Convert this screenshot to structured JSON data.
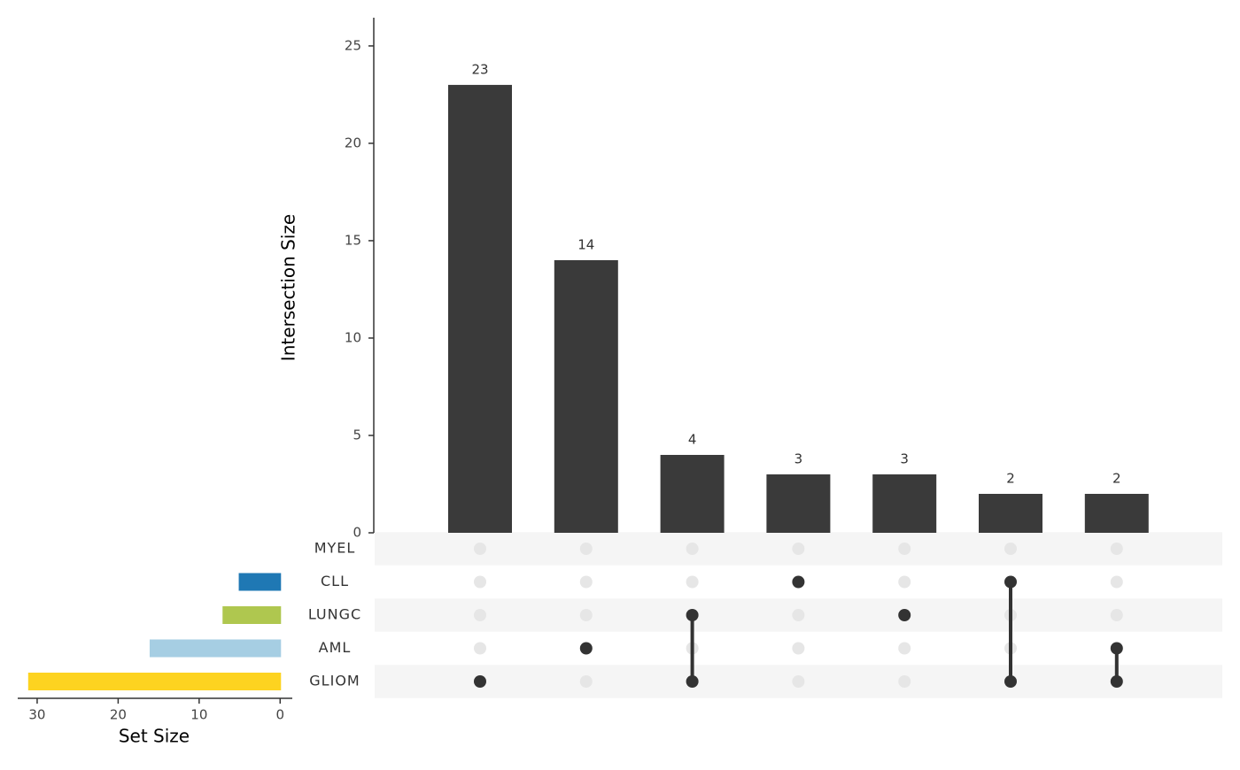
{
  "chart_data": {
    "type": "upset",
    "y_label": "Intersection Size",
    "set_size_label": "Set Size",
    "values": [
      23,
      14,
      4,
      3,
      3,
      2,
      2
    ],
    "bar_color": "#3a3a3a",
    "ylim": [
      0,
      26.45
    ],
    "yticks": [
      0,
      5,
      10,
      15,
      20,
      25
    ],
    "sets": [
      {
        "name": "MYEL",
        "size": 0,
        "color": "#66c2a5"
      },
      {
        "name": "CLL",
        "size": 5,
        "color": "#1f78b4"
      },
      {
        "name": "LUNGC",
        "size": 7,
        "color": "#afc74f"
      },
      {
        "name": "AML",
        "size": 16,
        "color": "#a6cee3"
      },
      {
        "name": "GLIOM",
        "size": 31,
        "color": "#fdd320"
      }
    ],
    "membership": [
      [
        4
      ],
      [
        3
      ],
      [
        2,
        4
      ],
      [
        1
      ],
      [
        2
      ],
      [
        1,
        4
      ],
      [
        3,
        4
      ]
    ],
    "set_size_xlim": [
      32.4,
      -1.5
    ],
    "set_size_xticks": [
      30,
      20,
      10,
      0
    ]
  }
}
